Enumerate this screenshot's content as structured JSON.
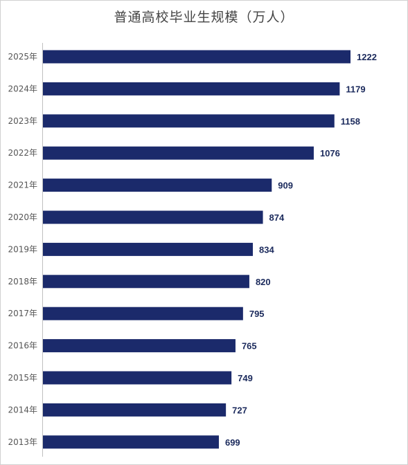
{
  "chart_data": {
    "type": "bar",
    "orientation": "horizontal",
    "title": "普通高校毕业生规模（万人）",
    "categories": [
      "2025年",
      "2024年",
      "2023年",
      "2022年",
      "2021年",
      "2020年",
      "2019年",
      "2018年",
      "2017年",
      "2016年",
      "2015年",
      "2014年",
      "2013年"
    ],
    "values": [
      1222,
      1179,
      1158,
      1076,
      909,
      874,
      834,
      820,
      795,
      765,
      749,
      727,
      699
    ],
    "data_labels": [
      "1222",
      "1179",
      "1158",
      "1076",
      "909",
      "874",
      "834",
      "820",
      "795",
      "765",
      "749",
      "727",
      "699"
    ],
    "xlabel": "",
    "ylabel": "",
    "grid": false,
    "legend": "none",
    "bar_color": "#1b2a6b"
  }
}
